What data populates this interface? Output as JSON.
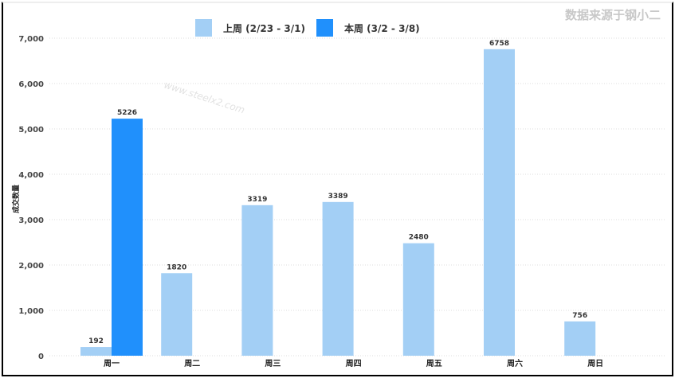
{
  "source_note": "数据来源于钢小二",
  "watermark": "www.steelx2.com",
  "chart_data": {
    "type": "bar",
    "categories": [
      "周一",
      "周二",
      "周三",
      "周四",
      "周五",
      "周六",
      "周日"
    ],
    "series": [
      {
        "name": "上周 (2/23 - 3/1)",
        "color": "#a3cff5",
        "values": [
          192,
          1820,
          3319,
          3389,
          2480,
          6758,
          756
        ]
      },
      {
        "name": "本周 (3/2 - 3/8)",
        "color": "#2090fc",
        "values": [
          5226,
          null,
          null,
          null,
          null,
          null,
          null
        ]
      }
    ],
    "ylabel": "成交数量",
    "xlabel": "",
    "ylim": [
      0,
      7000
    ],
    "yticks": [
      0,
      1000,
      2000,
      3000,
      4000,
      5000,
      6000,
      7000
    ],
    "ytick_labels": [
      "0",
      "1,000",
      "2,000",
      "3,000",
      "4,000",
      "5,000",
      "6,000",
      "7,000"
    ],
    "grid": "horizontal dotted",
    "legend": "top-center"
  }
}
